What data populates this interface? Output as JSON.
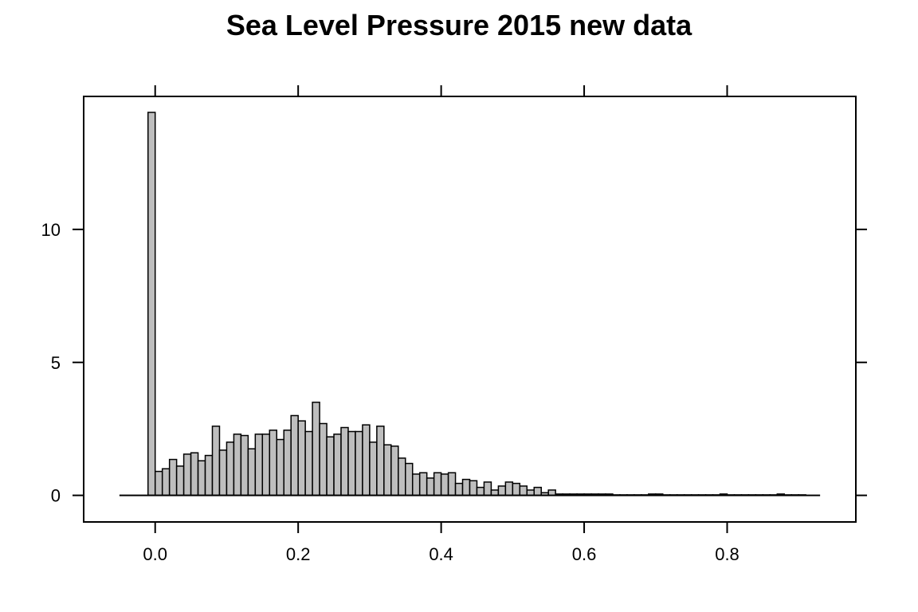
{
  "chart_data": {
    "type": "bar",
    "title": "Sea Level Pressure 2015 new data",
    "xlabel": "",
    "ylabel": "",
    "xlim": [
      -0.1,
      0.98
    ],
    "ylim": [
      -1,
      15
    ],
    "x_ticks": [
      0.0,
      0.2,
      0.4,
      0.6,
      0.8
    ],
    "x_tick_labels": [
      "0.0",
      "0.2",
      "0.4",
      "0.6",
      "0.8"
    ],
    "y_ticks": [
      0,
      5,
      10
    ],
    "y_tick_labels": [
      "0",
      "5",
      "10"
    ],
    "grid": false,
    "bin_width": 0.01,
    "bin_start": -0.01,
    "baseline_range": [
      -0.05,
      0.93
    ],
    "values": [
      14.4,
      0.9,
      1.0,
      1.35,
      1.1,
      1.55,
      1.6,
      1.3,
      1.5,
      2.6,
      1.7,
      2.0,
      2.3,
      2.25,
      1.75,
      2.3,
      2.3,
      2.45,
      2.1,
      2.45,
      3.0,
      2.8,
      2.4,
      3.5,
      2.7,
      2.2,
      2.3,
      2.55,
      2.4,
      2.4,
      2.65,
      2.0,
      2.6,
      1.9,
      1.85,
      1.4,
      1.2,
      0.8,
      0.85,
      0.65,
      0.85,
      0.8,
      0.85,
      0.45,
      0.6,
      0.55,
      0.3,
      0.5,
      0.2,
      0.35,
      0.5,
      0.45,
      0.35,
      0.2,
      0.3,
      0.1,
      0.2,
      0.05,
      0.05,
      0.05,
      0.05,
      0.05,
      0.05,
      0.05,
      0.05,
      0.02,
      0.02,
      0.02,
      0.02,
      0.02,
      0.05,
      0.05,
      0.02,
      0.02,
      0.02,
      0.02,
      0.02,
      0.02,
      0.02,
      0.02,
      0.05,
      0.02,
      0.02,
      0.02,
      0.02,
      0.02,
      0.02,
      0.02,
      0.05,
      0.02,
      0.02,
      0.02
    ],
    "bar_color": "#bebebe",
    "edge_color": "#000000"
  }
}
